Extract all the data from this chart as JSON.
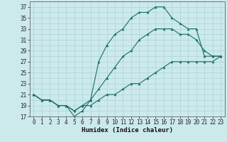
{
  "xlabel": "Humidex (Indice chaleur)",
  "xlim": [
    -0.5,
    23.5
  ],
  "ylim": [
    17,
    38
  ],
  "yticks": [
    17,
    19,
    21,
    23,
    25,
    27,
    29,
    31,
    33,
    35,
    37
  ],
  "xticks": [
    0,
    1,
    2,
    3,
    4,
    5,
    6,
    7,
    8,
    9,
    10,
    11,
    12,
    13,
    14,
    15,
    16,
    17,
    18,
    19,
    20,
    21,
    22,
    23
  ],
  "bg_color": "#cce9ec",
  "grid_color": "#aad4d8",
  "line_color": "#1a6e68",
  "hours": [
    0,
    1,
    2,
    3,
    4,
    5,
    6,
    7,
    8,
    9,
    10,
    11,
    12,
    13,
    14,
    15,
    16,
    17,
    18,
    19,
    20,
    21,
    22,
    23
  ],
  "series_max": [
    21,
    20,
    20,
    19,
    19,
    17,
    18,
    20,
    27,
    30,
    32,
    33,
    35,
    36,
    36,
    37,
    37,
    35,
    34,
    33,
    33,
    28,
    28,
    28
  ],
  "series_mid": [
    21,
    20,
    20,
    19,
    19,
    18,
    19,
    20,
    22,
    24,
    26,
    28,
    29,
    31,
    32,
    33,
    33,
    33,
    32,
    32,
    31,
    29,
    28,
    28
  ],
  "series_min": [
    21,
    20,
    20,
    19,
    19,
    18,
    19,
    19,
    20,
    21,
    21,
    22,
    23,
    23,
    24,
    25,
    26,
    27,
    27,
    27,
    27,
    27,
    27,
    28
  ],
  "tick_fontsize": 5.5,
  "xlabel_fontsize": 6.5
}
